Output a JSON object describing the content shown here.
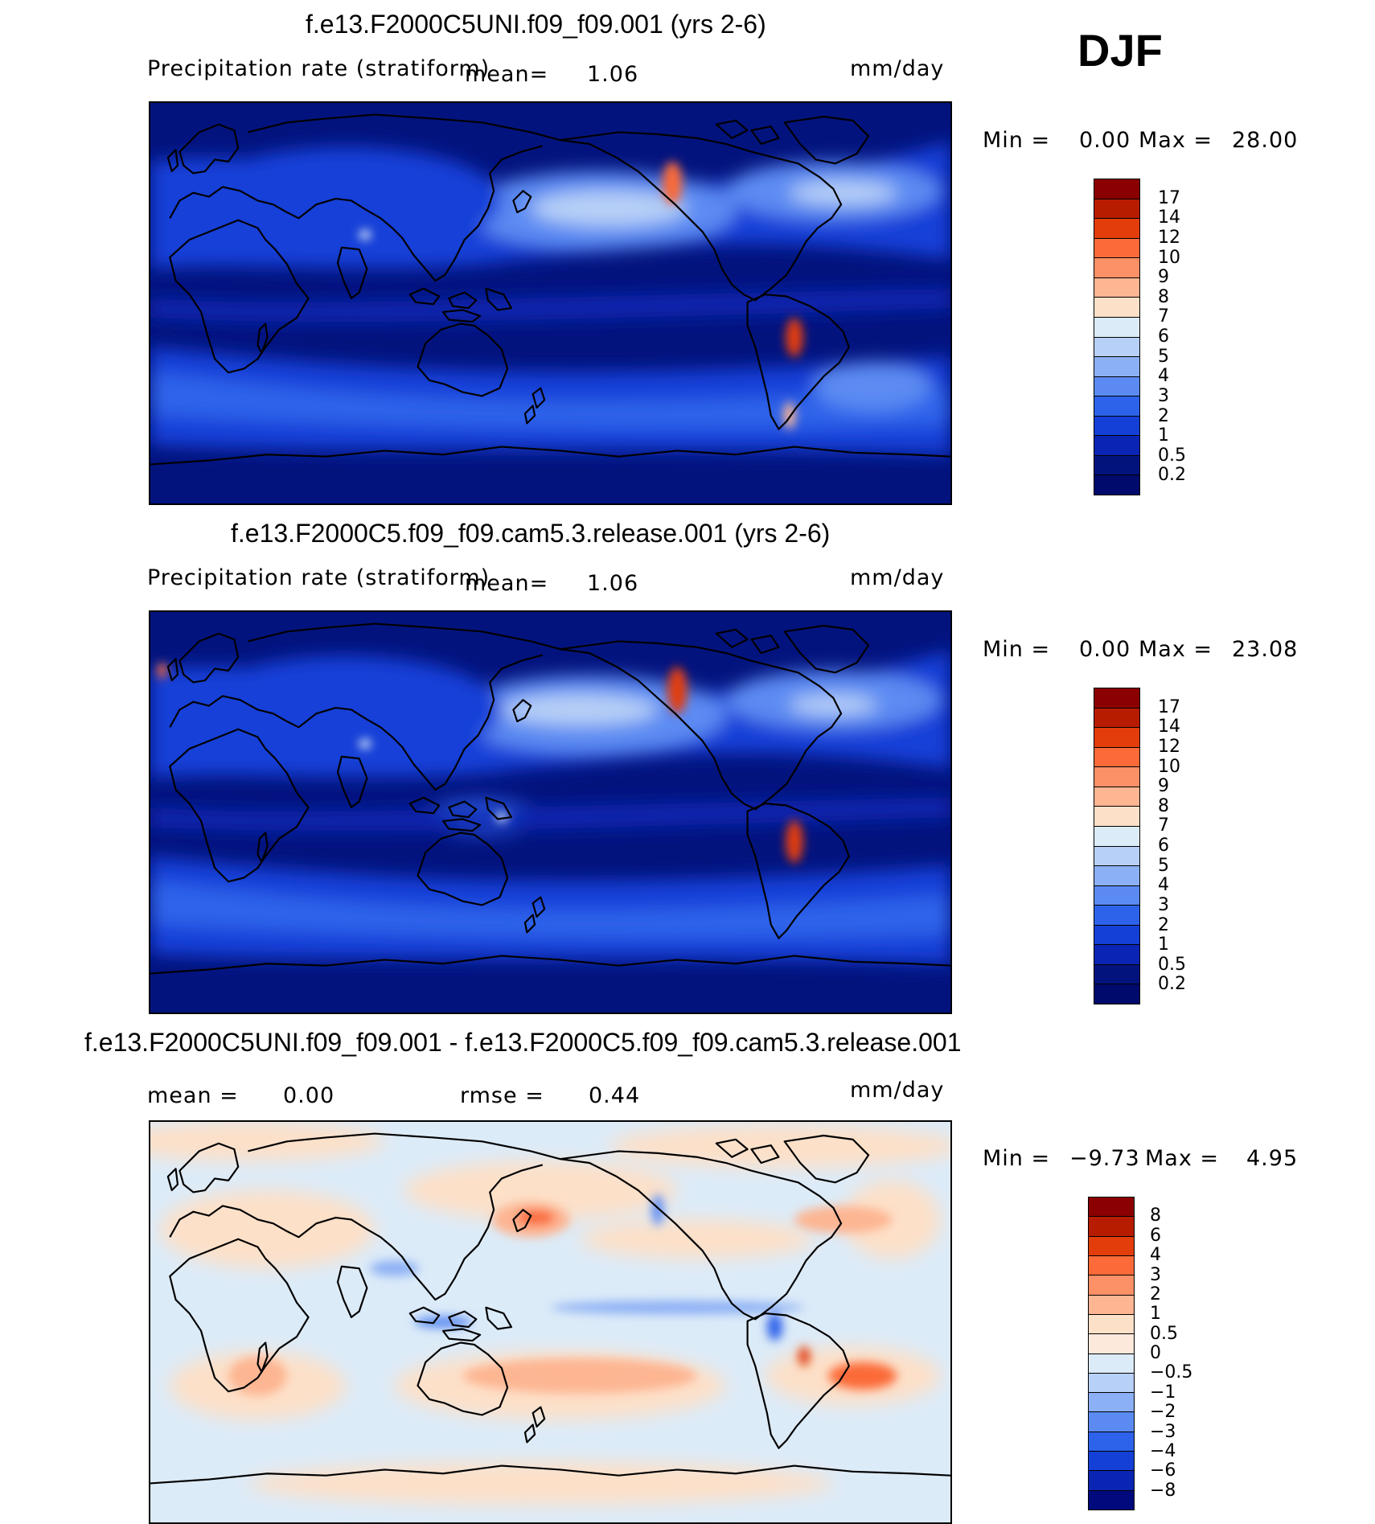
{
  "season": "DJF",
  "panels": [
    {
      "title": "f.e13.F2000C5UNI.f09_f09.001 (yrs 2-6)",
      "variable": "Precipitation rate (stratiform)",
      "mean_label": "mean=",
      "mean_value": "1.06",
      "units": "mm/day",
      "min_label": "Min =",
      "min_value": "0.00",
      "max_label": "Max =",
      "max_value": "28.00"
    },
    {
      "title": "f.e13.F2000C5.f09_f09.cam5.3.release.001 (yrs 2-6)",
      "variable": "Precipitation rate (stratiform)",
      "mean_label": "mean=",
      "mean_value": "1.06",
      "units": "mm/day",
      "min_label": "Min =",
      "min_value": "0.00",
      "max_label": "Max =",
      "max_value": "23.08"
    },
    {
      "title": "f.e13.F2000C5UNI.f09_f09.001 - f.e13.F2000C5.f09_f09.cam5.3.release.001",
      "mean_label": "mean =",
      "mean_value": "0.00",
      "rmse_label": "rmse =",
      "rmse_value": "0.44",
      "units": "mm/day",
      "min_label": "Min =",
      "min_value": "−9.73",
      "max_label": "Max =",
      "max_value": "4.95"
    }
  ],
  "colorbars": {
    "field": {
      "ticks": [
        "17",
        "14",
        "12",
        "10",
        "9",
        "8",
        "7",
        "6",
        "5",
        "4",
        "3",
        "2",
        "1",
        "0.5",
        "0.2"
      ],
      "colors": [
        "#8b0000",
        "#b81c00",
        "#e23d0b",
        "#fb6a38",
        "#fc9066",
        "#fdb592",
        "#fde0c8",
        "#dcebf8",
        "#b7d0f7",
        "#8cb0f5",
        "#5b8bf2",
        "#2d63ea",
        "#1440d8",
        "#0a25b4",
        "#03137e",
        "#000a6c"
      ]
    },
    "diff": {
      "ticks": [
        "8",
        "6",
        "4",
        "3",
        "2",
        "1",
        "0.5",
        "0",
        "−0.5",
        "−1",
        "−2",
        "−3",
        "−4",
        "−6",
        "−8"
      ],
      "colors": [
        "#8b0000",
        "#b81c00",
        "#e23d0b",
        "#fb6a38",
        "#fc9066",
        "#fdb592",
        "#fde0c8",
        "#fde9dc",
        "#dcebf8",
        "#b7d0f7",
        "#8cb0f5",
        "#5b8bf2",
        "#2d63ea",
        "#1440d8",
        "#0a25b4",
        "#000a7c"
      ]
    }
  }
}
